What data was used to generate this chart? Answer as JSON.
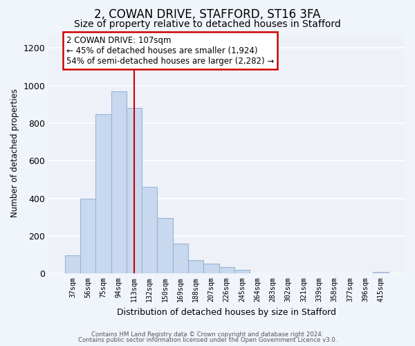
{
  "title": "2, COWAN DRIVE, STAFFORD, ST16 3FA",
  "subtitle": "Size of property relative to detached houses in Stafford",
  "xlabel": "Distribution of detached houses by size in Stafford",
  "ylabel": "Number of detached properties",
  "bar_labels": [
    "37sqm",
    "56sqm",
    "75sqm",
    "94sqm",
    "113sqm",
    "132sqm",
    "150sqm",
    "169sqm",
    "188sqm",
    "207sqm",
    "226sqm",
    "245sqm",
    "264sqm",
    "283sqm",
    "302sqm",
    "321sqm",
    "339sqm",
    "358sqm",
    "377sqm",
    "396sqm",
    "415sqm"
  ],
  "bar_values": [
    95,
    400,
    848,
    968,
    880,
    460,
    295,
    160,
    72,
    52,
    35,
    20,
    0,
    0,
    0,
    0,
    0,
    0,
    0,
    0,
    10
  ],
  "bar_color": "#c8d8ee",
  "bar_edge_color": "#9ab4d4",
  "vline_x_idx": 4,
  "vline_color": "#cc0000",
  "annotation_line1": "2 COWAN DRIVE: 107sqm",
  "annotation_line2": "← 45% of detached houses are smaller (1,924)",
  "annotation_line3": "54% of semi-detached houses are larger (2,282) →",
  "annotation_box_color": "white",
  "annotation_box_edge": "#cc0000",
  "ylim": [
    0,
    1280
  ],
  "yticks": [
    0,
    200,
    400,
    600,
    800,
    1000,
    1200
  ],
  "footer1": "Contains HM Land Registry data © Crown copyright and database right 2024.",
  "footer2": "Contains public sector information licensed under the Open Government Licence v3.0.",
  "bg_color": "#f0f4fb",
  "plot_bg_color": "#eef2f8",
  "title_fontsize": 12,
  "subtitle_fontsize": 10,
  "grid_color": "#ffffff"
}
